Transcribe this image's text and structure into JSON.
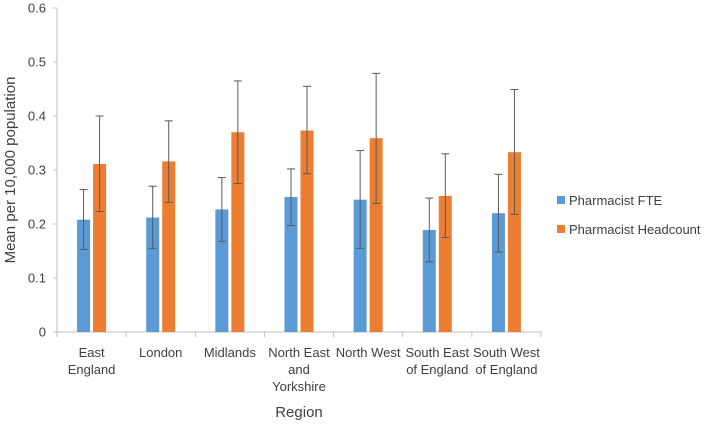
{
  "chart_data": {
    "type": "bar",
    "title": "",
    "xlabel": "Region",
    "ylabel": "Mean per 10,000 population",
    "ylim": [
      0,
      0.6
    ],
    "yticks": [
      "0",
      "0.1",
      "0.2",
      "0.3",
      "0.4",
      "0.5",
      "0.6"
    ],
    "grid": false,
    "legend_position": "right",
    "categories": [
      [
        "East",
        "England"
      ],
      [
        "London"
      ],
      [
        "Midlands"
      ],
      [
        "North East",
        "and",
        "Yorkshire"
      ],
      [
        "North West"
      ],
      [
        "South East",
        "of England"
      ],
      [
        "South West",
        "of England"
      ]
    ],
    "series": [
      {
        "name": "Pharmacist FTE",
        "color": "#5B9BD5",
        "values": [
          0.208,
          0.212,
          0.227,
          0.25,
          0.245,
          0.189,
          0.22
        ],
        "error_low": [
          0.153,
          0.155,
          0.168,
          0.197,
          0.155,
          0.13,
          0.148
        ],
        "error_high": [
          0.264,
          0.27,
          0.286,
          0.302,
          0.336,
          0.248,
          0.292
        ]
      },
      {
        "name": "Pharmacist Headcount",
        "color": "#ED7D31",
        "values": [
          0.311,
          0.316,
          0.37,
          0.373,
          0.359,
          0.252,
          0.333
        ],
        "error_low": [
          0.223,
          0.24,
          0.275,
          0.293,
          0.238,
          0.175,
          0.218
        ],
        "error_high": [
          0.4,
          0.391,
          0.465,
          0.455,
          0.479,
          0.33,
          0.449
        ]
      }
    ]
  }
}
